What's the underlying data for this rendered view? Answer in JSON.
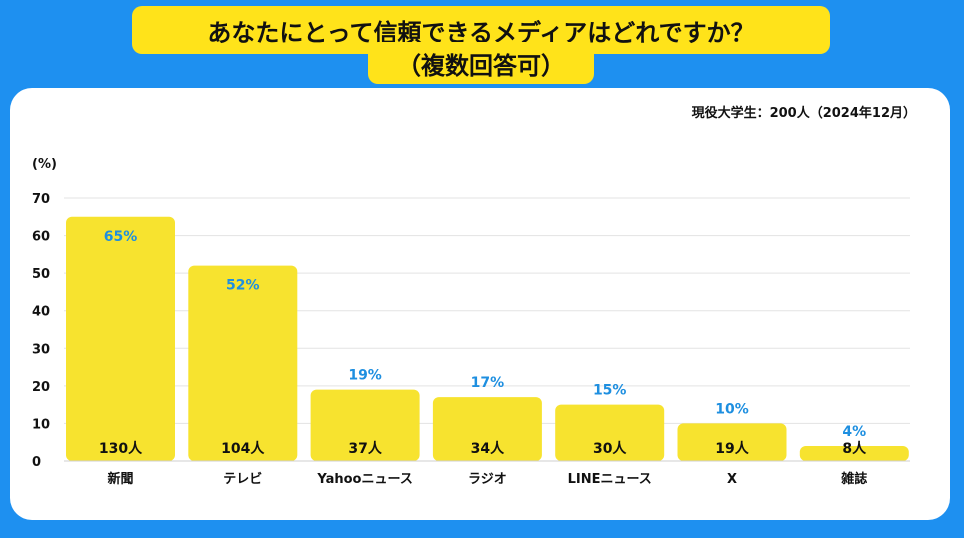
{
  "header": {
    "title_line1": "あなたにとって信頼できるメディアはどれですか？",
    "title_line2": "（複数回答可）"
  },
  "respondents_note": "現役大学生：200人（2024年12月）",
  "chart_data": {
    "type": "bar",
    "title": "あなたにとって信頼できるメディアはどれですか？（複数回答可）",
    "ylabel": "(%)",
    "xlabel": "",
    "ylim": [
      0,
      70
    ],
    "yticks": [
      0,
      10,
      20,
      30,
      40,
      50,
      60,
      70
    ],
    "grid": true,
    "categories": [
      "新聞",
      "テレビ",
      "Yahooニュース",
      "ラジオ",
      "LINEニュース",
      "X",
      "雑誌"
    ],
    "values": [
      65,
      52,
      19,
      17,
      15,
      10,
      4
    ],
    "value_labels": [
      "65%",
      "52%",
      "19%",
      "17%",
      "15%",
      "10%",
      "4%"
    ],
    "count_labels": [
      "130人",
      "104人",
      "37人",
      "34人",
      "30人",
      "19人",
      "8人"
    ],
    "colors": {
      "bar": "#f7e32f",
      "percent_text": "#1e8fe0",
      "grid": "#e3e3e3"
    }
  }
}
